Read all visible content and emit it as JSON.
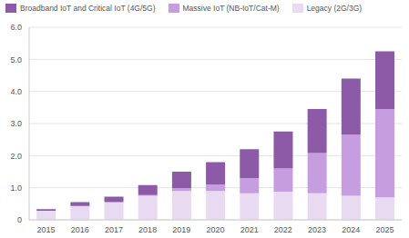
{
  "chart_data": {
    "type": "bar",
    "stacked": true,
    "grid": true,
    "legend": "top-left",
    "categories": [
      "2015",
      "2016",
      "2017",
      "2018",
      "2019",
      "2020",
      "2021",
      "2022",
      "2023",
      "2024",
      "2025"
    ],
    "series": [
      {
        "name": "Broadband IoT and Critical IoT (4G/5G)",
        "color": "#8c5aa6",
        "values": [
          0.05,
          0.12,
          0.17,
          0.31,
          0.52,
          0.7,
          0.9,
          1.15,
          1.37,
          1.75,
          1.8
        ]
      },
      {
        "name": "Massive IoT (NB-IoT/Cat-M)",
        "color": "#c69ddf",
        "values": [
          0,
          0,
          0,
          0.02,
          0.08,
          0.2,
          0.47,
          0.72,
          1.25,
          1.9,
          2.75
        ]
      },
      {
        "name": "Legacy (2G/3G)",
        "color": "#e8daf1",
        "values": [
          0.28,
          0.43,
          0.55,
          0.75,
          0.9,
          0.9,
          0.83,
          0.88,
          0.83,
          0.75,
          0.7
        ]
      }
    ],
    "ylim": [
      0,
      6
    ],
    "yticks": [
      0,
      {
        "value": 1,
        "label": "1.0"
      },
      {
        "value": 2,
        "label": "2.0"
      },
      {
        "value": 3,
        "label": "3.0"
      },
      {
        "value": 4,
        "label": "4.0"
      },
      {
        "value": 5,
        "label": "5.0"
      },
      {
        "value": 6,
        "label": "6.0"
      }
    ]
  }
}
